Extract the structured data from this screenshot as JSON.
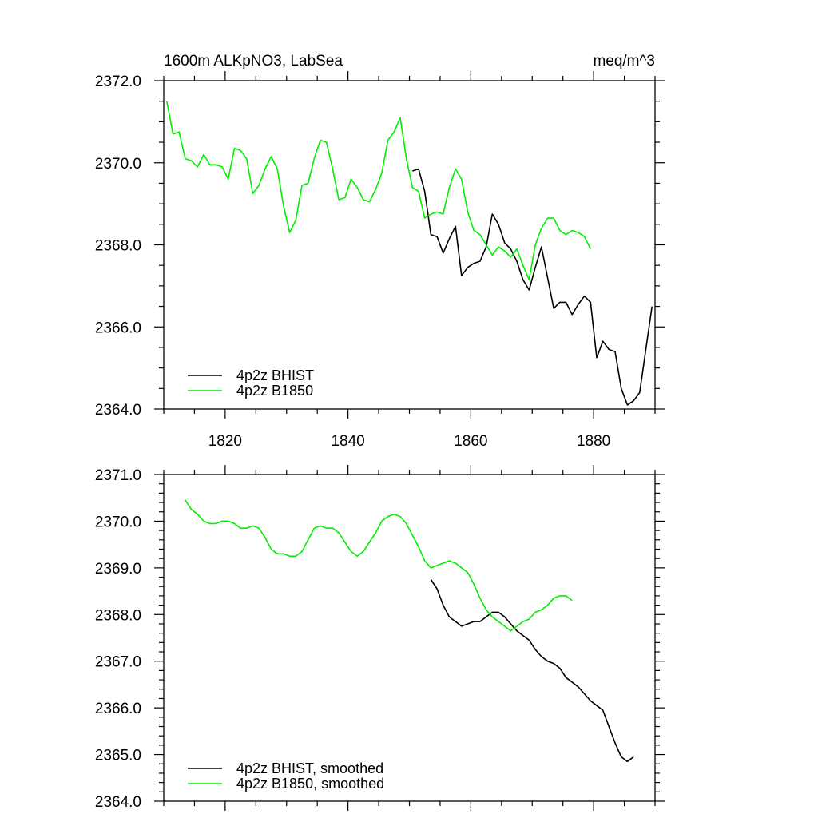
{
  "chart_data": [
    {
      "type": "line",
      "title": "1600m ALKpNO3, LabSea",
      "units": "meq/m^3",
      "xlabel": "",
      "ylabel": "",
      "xlim": [
        1810,
        1890
      ],
      "ylim": [
        2364.0,
        2372.0
      ],
      "xticks": [
        1820,
        1840,
        1860,
        1880
      ],
      "xtick_labels": [
        "1820",
        "1840",
        "1860",
        "1880"
      ],
      "yticks": [
        2364.0,
        2366.0,
        2368.0,
        2370.0,
        2372.0
      ],
      "ytick_labels": [
        "2364.0",
        "2366.0",
        "2368.0",
        "2370.0",
        "2372.0"
      ],
      "legend_position": "bottom-left",
      "series": [
        {
          "name": "4p2z BHIST",
          "color": "#000000",
          "x": [
            1850.5,
            1851.5,
            1852.5,
            1853.5,
            1854.5,
            1855.5,
            1856.5,
            1857.5,
            1858.5,
            1859.5,
            1860.5,
            1861.5,
            1862.5,
            1863.5,
            1864.5,
            1865.5,
            1866.5,
            1867.5,
            1868.5,
            1869.5,
            1870.5,
            1871.5,
            1872.5,
            1873.5,
            1874.5,
            1875.5,
            1876.5,
            1877.5,
            1878.5,
            1879.5,
            1880.5,
            1881.5,
            1882.5,
            1883.5,
            1884.5,
            1885.5,
            1886.5,
            1887.5,
            1888.5,
            1889.5
          ],
          "values": [
            2369.8,
            2369.85,
            2369.3,
            2368.25,
            2368.2,
            2367.8,
            2368.15,
            2368.45,
            2367.25,
            2367.45,
            2367.55,
            2367.6,
            2367.95,
            2368.75,
            2368.5,
            2368.05,
            2367.9,
            2367.6,
            2367.15,
            2366.9,
            2367.45,
            2367.95,
            2367.2,
            2366.45,
            2366.6,
            2366.6,
            2366.3,
            2366.55,
            2366.75,
            2366.6,
            2365.25,
            2365.65,
            2365.45,
            2365.4,
            2364.5,
            2364.1,
            2364.2,
            2364.4,
            2365.45,
            2366.5
          ]
        },
        {
          "name": "4p2z B1850",
          "color": "#00ee00",
          "x": [
            1810.5,
            1811.5,
            1812.5,
            1813.5,
            1814.5,
            1815.5,
            1816.5,
            1817.5,
            1818.5,
            1819.5,
            1820.5,
            1821.5,
            1822.5,
            1823.5,
            1824.5,
            1825.5,
            1826.5,
            1827.5,
            1828.5,
            1829.5,
            1830.5,
            1831.5,
            1832.5,
            1833.5,
            1834.5,
            1835.5,
            1836.5,
            1837.5,
            1838.5,
            1839.5,
            1840.5,
            1841.5,
            1842.5,
            1843.5,
            1844.5,
            1845.5,
            1846.5,
            1847.5,
            1848.5,
            1849.5,
            1850.5,
            1851.5,
            1852.5,
            1853.5,
            1854.5,
            1855.5,
            1856.5,
            1857.5,
            1858.5,
            1859.5,
            1860.5,
            1861.5,
            1862.5,
            1863.5,
            1864.5,
            1865.5,
            1866.5,
            1867.5,
            1868.5,
            1869.5,
            1870.5,
            1871.5,
            1872.5,
            1873.5,
            1874.5,
            1875.5,
            1876.5,
            1877.5,
            1878.5,
            1879.5
          ],
          "values": [
            2371.5,
            2370.7,
            2370.75,
            2370.1,
            2370.05,
            2369.9,
            2370.2,
            2369.95,
            2369.95,
            2369.9,
            2369.6,
            2370.35,
            2370.3,
            2370.1,
            2369.25,
            2369.45,
            2369.85,
            2370.15,
            2369.85,
            2368.95,
            2368.3,
            2368.6,
            2369.45,
            2369.5,
            2370.1,
            2370.55,
            2370.5,
            2369.85,
            2369.1,
            2369.15,
            2369.6,
            2369.4,
            2369.1,
            2369.05,
            2369.35,
            2369.75,
            2370.55,
            2370.75,
            2371.1,
            2370.1,
            2369.4,
            2369.3,
            2368.65,
            2368.75,
            2368.8,
            2368.75,
            2369.4,
            2369.85,
            2369.6,
            2368.8,
            2368.35,
            2368.25,
            2368.0,
            2367.75,
            2367.95,
            2367.85,
            2367.7,
            2367.9,
            2367.5,
            2367.15,
            2368.0,
            2368.4,
            2368.65,
            2368.65,
            2368.35,
            2368.25,
            2368.35,
            2368.3,
            2368.2,
            2367.9
          ]
        }
      ]
    },
    {
      "type": "line",
      "title": "",
      "xlabel": "",
      "ylabel": "",
      "xlim": [
        1810,
        1890
      ],
      "ylim": [
        2364.0,
        2371.0
      ],
      "xticks": [
        1820,
        1840,
        1860,
        1880
      ],
      "yticks": [
        2364.0,
        2365.0,
        2366.0,
        2367.0,
        2368.0,
        2369.0,
        2370.0,
        2371.0
      ],
      "ytick_labels": [
        "2364.0",
        "2365.0",
        "2366.0",
        "2367.0",
        "2368.0",
        "2369.0",
        "2370.0",
        "2371.0"
      ],
      "legend_position": "bottom-left",
      "series": [
        {
          "name": "4p2z BHIST, smoothed",
          "color": "#000000",
          "x": [
            1853.5,
            1854.5,
            1855.5,
            1856.5,
            1857.5,
            1858.5,
            1859.5,
            1860.5,
            1861.5,
            1862.5,
            1863.5,
            1864.5,
            1865.5,
            1866.5,
            1867.5,
            1868.5,
            1869.5,
            1870.5,
            1871.5,
            1872.5,
            1873.5,
            1874.5,
            1875.5,
            1876.5,
            1877.5,
            1878.5,
            1879.5,
            1880.5,
            1881.5,
            1882.5,
            1883.5,
            1884.5,
            1885.5,
            1886.5
          ],
          "values": [
            2368.75,
            2368.55,
            2368.2,
            2367.95,
            2367.85,
            2367.75,
            2367.8,
            2367.85,
            2367.85,
            2367.95,
            2368.05,
            2368.05,
            2367.95,
            2367.8,
            2367.65,
            2367.55,
            2367.45,
            2367.25,
            2367.1,
            2367.0,
            2366.95,
            2366.85,
            2366.65,
            2366.55,
            2366.45,
            2366.3,
            2366.15,
            2366.05,
            2365.95,
            2365.6,
            2365.25,
            2364.95,
            2364.85,
            2364.95
          ]
        },
        {
          "name": "4p2z B1850, smoothed",
          "color": "#00ee00",
          "x": [
            1813.5,
            1814.5,
            1815.5,
            1816.5,
            1817.5,
            1818.5,
            1819.5,
            1820.5,
            1821.5,
            1822.5,
            1823.5,
            1824.5,
            1825.5,
            1826.5,
            1827.5,
            1828.5,
            1829.5,
            1830.5,
            1831.5,
            1832.5,
            1833.5,
            1834.5,
            1835.5,
            1836.5,
            1837.5,
            1838.5,
            1839.5,
            1840.5,
            1841.5,
            1842.5,
            1843.5,
            1844.5,
            1845.5,
            1846.5,
            1847.5,
            1848.5,
            1849.5,
            1850.5,
            1851.5,
            1852.5,
            1853.5,
            1854.5,
            1855.5,
            1856.5,
            1857.5,
            1858.5,
            1859.5,
            1860.5,
            1861.5,
            1862.5,
            1863.5,
            1864.5,
            1865.5,
            1866.5,
            1867.5,
            1868.5,
            1869.5,
            1870.5,
            1871.5,
            1872.5,
            1873.5,
            1874.5,
            1875.5,
            1876.5
          ],
          "values": [
            2370.45,
            2370.25,
            2370.15,
            2370.0,
            2369.95,
            2369.95,
            2370.0,
            2370.0,
            2369.95,
            2369.85,
            2369.85,
            2369.9,
            2369.85,
            2369.65,
            2369.4,
            2369.3,
            2369.3,
            2369.25,
            2369.25,
            2369.35,
            2369.6,
            2369.85,
            2369.9,
            2369.85,
            2369.85,
            2369.75,
            2369.55,
            2369.35,
            2369.25,
            2369.35,
            2369.55,
            2369.75,
            2370.0,
            2370.1,
            2370.15,
            2370.1,
            2369.95,
            2369.7,
            2369.45,
            2369.15,
            2369.0,
            2369.05,
            2369.1,
            2369.15,
            2369.1,
            2369.0,
            2368.9,
            2368.65,
            2368.35,
            2368.1,
            2367.95,
            2367.85,
            2367.75,
            2367.65,
            2367.75,
            2367.85,
            2367.9,
            2368.05,
            2368.1,
            2368.2,
            2368.35,
            2368.4,
            2368.4,
            2368.3
          ]
        }
      ]
    }
  ]
}
